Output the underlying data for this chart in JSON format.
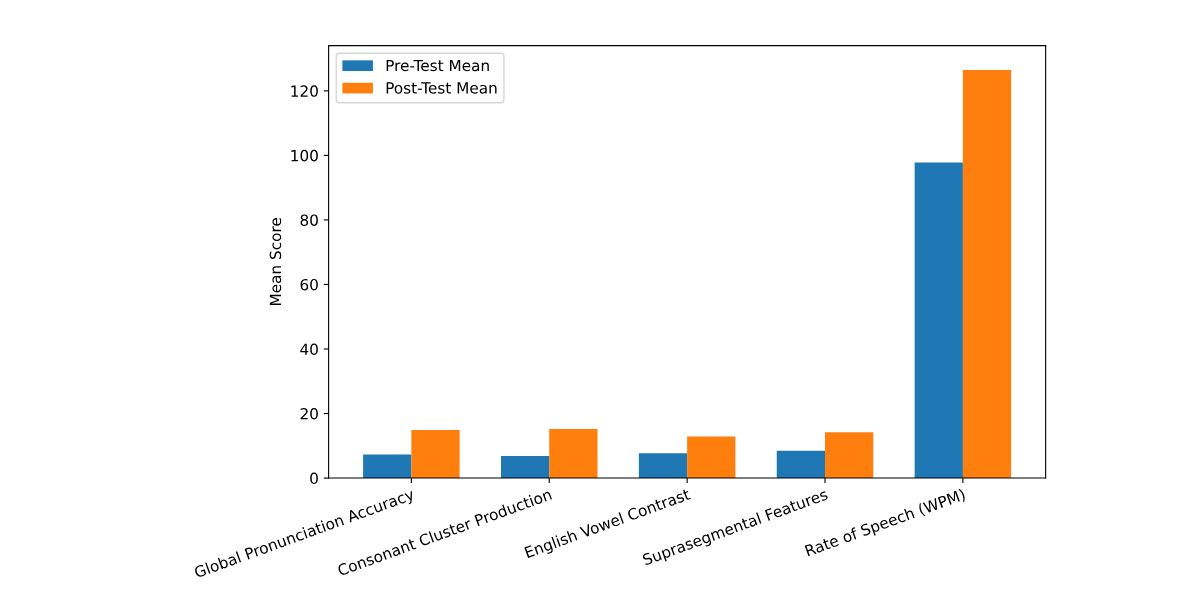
{
  "chart_data": {
    "type": "bar",
    "categories": [
      "Global Pronunciation Accuracy",
      "Consonant Cluster Production",
      "English Vowel Contrast",
      "Suprasegmental Features",
      "Rate of Speech (WPM)"
    ],
    "series": [
      {
        "name": "Pre-Test Mean",
        "color": "#1f77b4",
        "values": [
          7.3,
          6.8,
          7.7,
          8.5,
          97.8
        ]
      },
      {
        "name": "Post-Test Mean",
        "color": "#ff7f0e",
        "values": [
          14.9,
          15.2,
          12.9,
          14.2,
          126.5
        ]
      }
    ],
    "ylabel": "Mean Score",
    "ylim": [
      0,
      134
    ],
    "yticks": [
      0,
      20,
      40,
      60,
      80,
      100,
      120
    ],
    "legend": "top left",
    "grid": false
  }
}
